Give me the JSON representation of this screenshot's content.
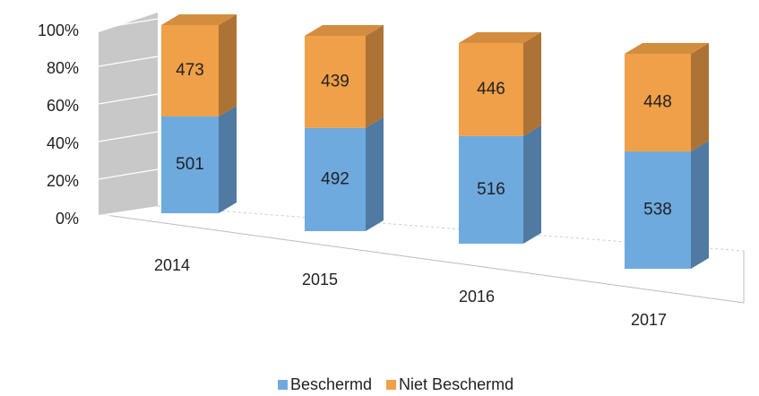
{
  "chart_data": {
    "type": "bar3d",
    "stack": "percent",
    "categories": [
      "2014",
      "2015",
      "2016",
      "2017"
    ],
    "series": [
      {
        "name": "Beschermd",
        "color": "#6faadf",
        "values": [
          501,
          492,
          516,
          538
        ]
      },
      {
        "name": "Niet Beschermd",
        "color": "#f0a048",
        "values": [
          473,
          439,
          446,
          448
        ]
      }
    ],
    "ylim": [
      0,
      100
    ],
    "yticks": [
      {
        "value": 0,
        "label": "0%"
      },
      {
        "value": 20,
        "label": "20%"
      },
      {
        "value": 40,
        "label": "40%"
      },
      {
        "value": 60,
        "label": "60%"
      },
      {
        "value": 80,
        "label": "80%"
      },
      {
        "value": 100,
        "label": "100%"
      }
    ],
    "grid": true,
    "legend": "bottom"
  }
}
